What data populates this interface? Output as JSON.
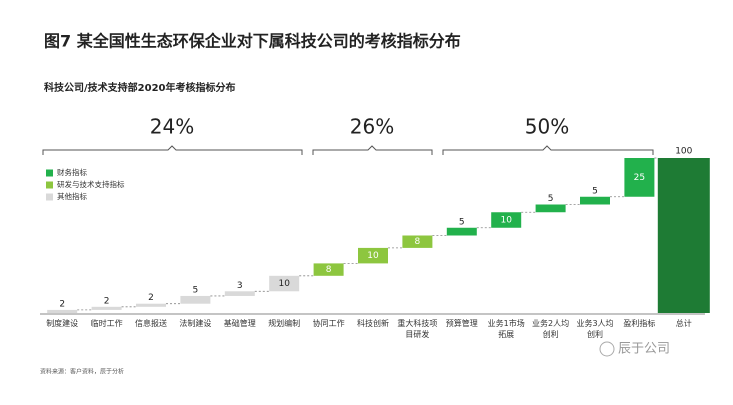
{
  "chart_data": {
    "type": "waterfall",
    "title": "图7 某全国性生态环保企业对下属科技公司的考核指标分布",
    "subtitle": "科技公司/技术支持部2020年考核指标分布",
    "annotations": [
      "24%",
      "26%",
      "50%"
    ],
    "categories": [
      "制度建设",
      "临时工作",
      "信息报送",
      "法制建设",
      "基础管理",
      "规划编制",
      "协同工作",
      "科技创新",
      "重大科技项目研发",
      "预算管理",
      "业务1市场拓展",
      "业务2人均创利",
      "业务3人均创利",
      "盈利指标",
      "总计"
    ],
    "values": [
      2,
      2,
      2,
      5,
      3,
      10,
      8,
      10,
      8,
      5,
      10,
      5,
      5,
      25,
      100
    ],
    "colors": [
      "#d9d9d9",
      "#d9d9d9",
      "#d9d9d9",
      "#d9d9d9",
      "#d9d9d9",
      "#d9d9d9",
      "#8dc63f",
      "#8dc63f",
      "#8dc63f",
      "#22b14c",
      "#22b14c",
      "#22b14c",
      "#22b14c",
      "#22b14c",
      "#1e7b34"
    ],
    "legend": [
      {
        "name": "财务指标",
        "color": "#22b14c"
      },
      {
        "name": "研发与技术支持指标",
        "color": "#8dc63f"
      },
      {
        "name": "其他指标",
        "color": "#d9d9d9"
      }
    ],
    "ylim": [
      0,
      100
    ],
    "source": "资料来源：客户资料，辰于分析",
    "watermark": "辰于公司"
  }
}
